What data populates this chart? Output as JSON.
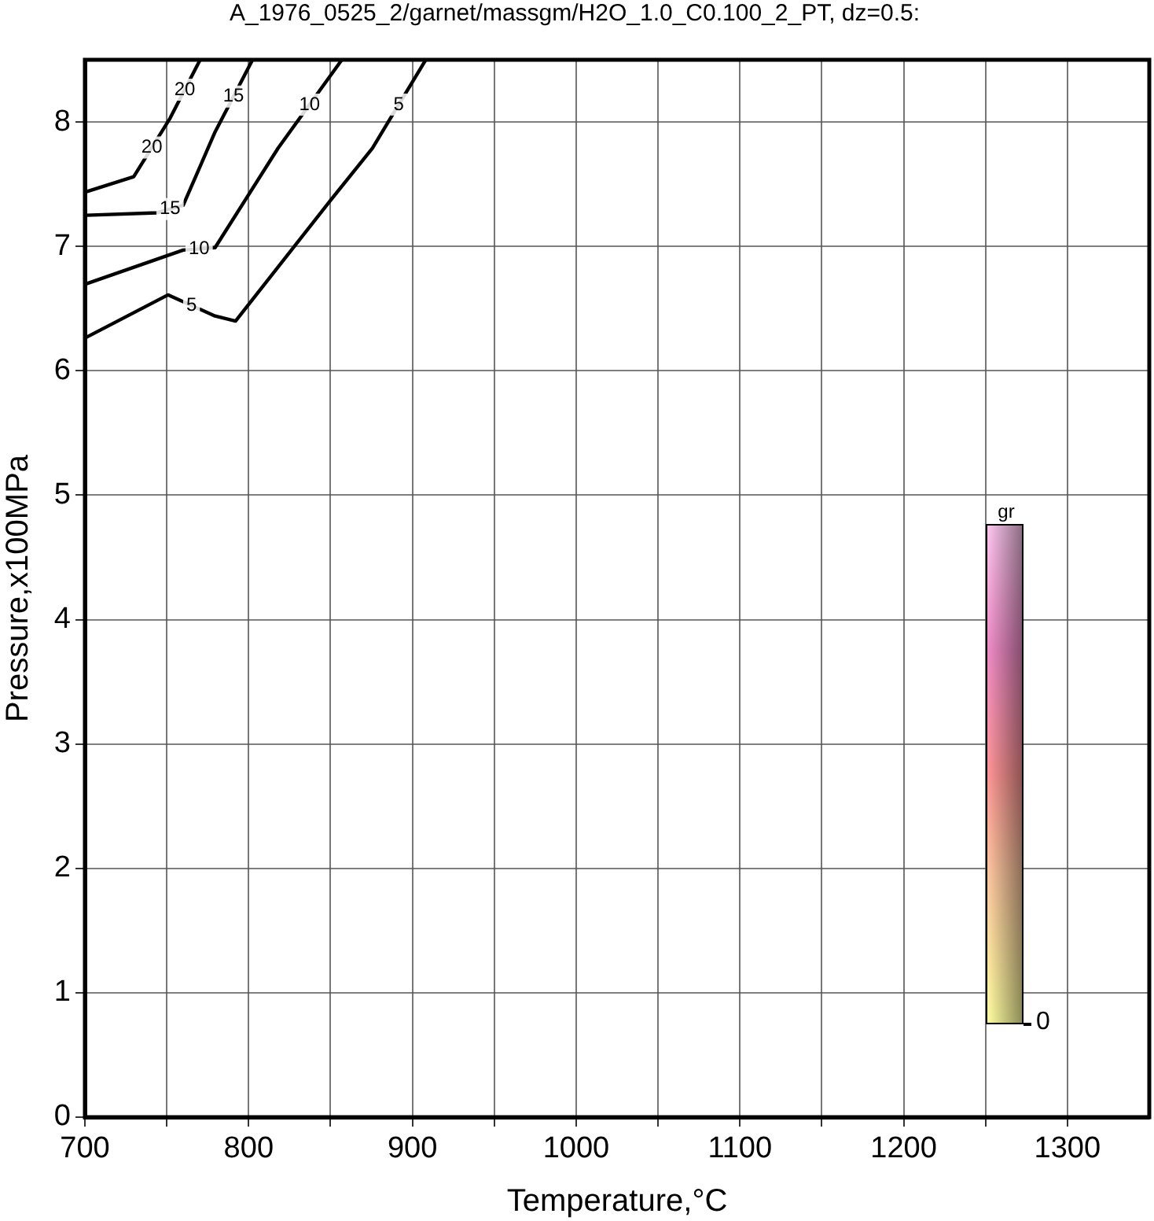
{
  "chart_data": {
    "type": "line",
    "title": "A_1976_0525_2/garnet/massgm/H2O_1.0_C0.100_2_PT, dz=0.5:",
    "xlabel": "Temperature,°C",
    "ylabel": "Pressure,x100MPa",
    "clabel": "gr",
    "annotations": [
      "0"
    ],
    "xlim": [
      700,
      1350
    ],
    "ylim": [
      0,
      8.5
    ],
    "xticks": [
      700,
      {
        "value": 750,
        "label": null
      },
      800,
      {
        "value": 850,
        "label": null
      },
      900,
      {
        "value": 950,
        "label": null
      },
      1000,
      {
        "value": 1050,
        "label": null
      },
      1100,
      {
        "value": 1150,
        "label": null
      },
      1200,
      {
        "value": 1250,
        "label": null
      },
      1300
    ],
    "yticks": [
      0,
      1,
      2,
      3,
      4,
      5,
      6,
      7,
      8
    ],
    "grid": true,
    "legend": false,
    "marker": "none",
    "line_style": "solid",
    "series": [
      {
        "name": "5",
        "color": "#000000",
        "x": [
          701,
          750.7,
          779.5,
          792,
          850,
          875.6,
          907.7
        ],
        "values": [
          6.27,
          6.61,
          6.44,
          6.4,
          7.37,
          7.79,
          8.49
        ]
      },
      {
        "name": "10",
        "color": "#000000",
        "x": [
          701,
          760,
          779.5,
          818,
          856.4
        ],
        "values": [
          6.7,
          6.97,
          6.99,
          7.79,
          8.49
        ]
      },
      {
        "name": "15",
        "color": "#000000",
        "x": [
          701,
          744,
          760,
          779.5,
          802
        ],
        "values": [
          7.25,
          7.27,
          7.33,
          7.92,
          8.49
        ]
      },
      {
        "name": "20",
        "color": "#000000",
        "x": [
          701,
          729.8,
          752,
          770
        ],
        "values": [
          7.44,
          7.56,
          8.03,
          8.49
        ]
      }
    ]
  }
}
